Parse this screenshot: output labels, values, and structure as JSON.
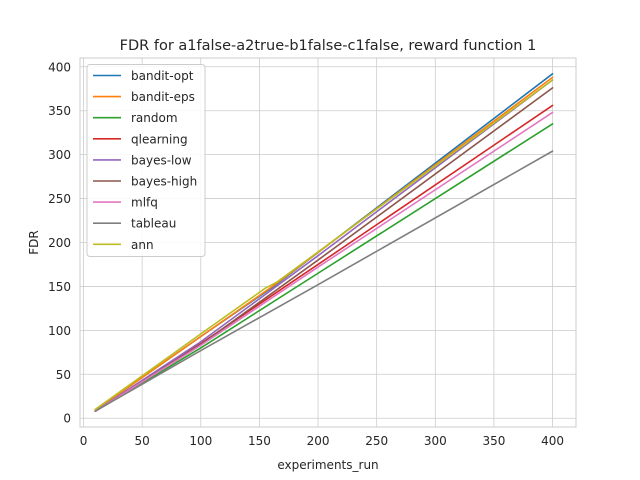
{
  "chart_data": {
    "type": "line",
    "title": "FDR for a1false-a2true-b1false-c1false, reward function 1",
    "xlabel": "experiments_run",
    "ylabel": "FDR",
    "xlim": [
      -3,
      420
    ],
    "ylim": [
      -10,
      410
    ],
    "xticks": [
      0,
      50,
      100,
      150,
      200,
      250,
      300,
      350,
      400
    ],
    "yticks": [
      0,
      50,
      100,
      150,
      200,
      250,
      300,
      350,
      400
    ],
    "grid": true,
    "legend_position": "upper-left",
    "series": [
      {
        "name": "bandit-opt",
        "color": "#1f77b4",
        "x": [
          10,
          100,
          160,
          400
        ],
        "y": [
          9,
          93,
          148,
          392
        ]
      },
      {
        "name": "bandit-eps",
        "color": "#ff7f0e",
        "x": [
          10,
          100,
          160,
          400
        ],
        "y": [
          9,
          93,
          149,
          388
        ]
      },
      {
        "name": "random",
        "color": "#2ca02c",
        "x": [
          10,
          100,
          200,
          400
        ],
        "y": [
          8,
          80,
          165,
          335
        ]
      },
      {
        "name": "qlearning",
        "color": "#d62728",
        "x": [
          10,
          100,
          200,
          400
        ],
        "y": [
          8,
          85,
          175,
          356
        ]
      },
      {
        "name": "bayes-low",
        "color": "#9467bd",
        "x": [
          10,
          100,
          200,
          400
        ],
        "y": [
          8,
          87,
          185,
          385
        ]
      },
      {
        "name": "bayes-high",
        "color": "#8c564b",
        "x": [
          10,
          100,
          200,
          400
        ],
        "y": [
          8,
          84,
          180,
          376
        ]
      },
      {
        "name": "mlfq",
        "color": "#e377c2",
        "x": [
          10,
          100,
          200,
          400
        ],
        "y": [
          8,
          83,
          172,
          348
        ]
      },
      {
        "name": "tableau",
        "color": "#7f7f7f",
        "x": [
          10,
          100,
          200,
          400
        ],
        "y": [
          8,
          77,
          152,
          304
        ]
      },
      {
        "name": "ann",
        "color": "#bcbd22",
        "x": [
          10,
          100,
          155,
          165,
          400
        ],
        "y": [
          10,
          96,
          148,
          155,
          385
        ]
      }
    ]
  }
}
